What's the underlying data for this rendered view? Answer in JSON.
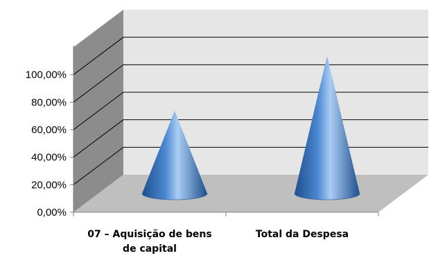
{
  "chart_data": {
    "type": "bar",
    "style": "3d-cone",
    "categories": [
      [
        "07 – Aquisição de bens",
        "de capital"
      ],
      [
        "Total da Despesa"
      ]
    ],
    "series": [
      {
        "values": [
          60.2,
          100
        ]
      }
    ],
    "y_ticks": [
      "0,00%",
      "20,00%",
      "40,00%",
      "60,00%",
      "80,00%",
      "100,00%"
    ],
    "ylim": [
      0,
      120
    ],
    "grid": true,
    "legend": "none",
    "colors": {
      "cone_dark": "#1f4f8e",
      "cone_mid": "#4a86cf",
      "cone_light": "#a9cdf3",
      "back_wall": "#e6e6e6",
      "side_wall": "#8c8c8c",
      "floor": "#bfbfbf",
      "gridline": "#000000"
    }
  }
}
